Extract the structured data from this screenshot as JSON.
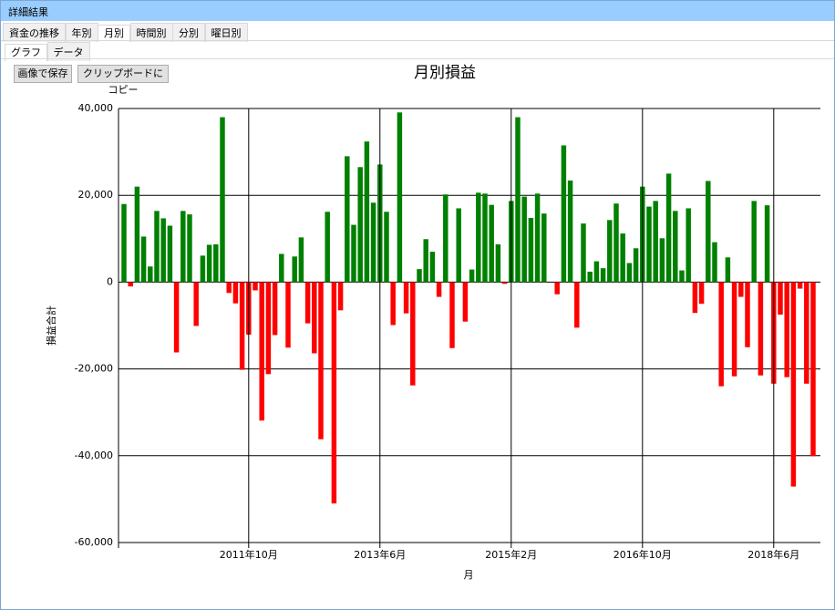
{
  "window": {
    "title": "詳細結果"
  },
  "tabs": [
    "資金の推移",
    "年別",
    "月別",
    "時間別",
    "分別",
    "曜日別"
  ],
  "subtabs": [
    "グラフ",
    "データ"
  ],
  "buttons": [
    "画像で保存",
    "クリップボードにコピー"
  ],
  "chart_data": {
    "type": "bar",
    "title": "月別損益",
    "x_label": "月",
    "y_label": "損益合計",
    "categories": [
      null,
      null,
      null,
      null,
      null,
      null,
      null,
      null,
      null,
      null,
      null,
      null,
      null,
      null,
      null,
      null,
      null,
      null,
      null,
      "2011年10月",
      null,
      null,
      null,
      null,
      null,
      null,
      null,
      null,
      null,
      null,
      null,
      null,
      null,
      null,
      null,
      null,
      null,
      null,
      null,
      "2013年6月",
      null,
      null,
      null,
      null,
      null,
      null,
      null,
      null,
      null,
      null,
      null,
      null,
      null,
      null,
      null,
      null,
      null,
      null,
      null,
      "2015年2月",
      null,
      null,
      null,
      null,
      null,
      null,
      null,
      null,
      null,
      null,
      null,
      null,
      null,
      null,
      null,
      null,
      null,
      null,
      null,
      "2016年10月",
      null,
      null,
      null,
      null,
      null,
      null,
      null,
      null,
      null,
      null,
      null,
      null,
      null,
      null,
      null,
      null,
      null,
      null,
      null,
      "2018年6月",
      null,
      null,
      null,
      null,
      null,
      null
    ],
    "values": [
      18000,
      -1000,
      22000,
      10500,
      3600,
      16400,
      14700,
      13000,
      -16200,
      16400,
      15600,
      -10100,
      6100,
      8600,
      8700,
      38000,
      -2500,
      -4900,
      -20200,
      -12100,
      -1900,
      -31900,
      -21200,
      -12200,
      6500,
      -15100,
      5900,
      10300,
      -9500,
      -16400,
      -36200,
      16200,
      -51000,
      -6500,
      29000,
      13200,
      26500,
      32400,
      18300,
      27100,
      16200,
      -9900,
      39100,
      -7200,
      -23800,
      3000,
      9900,
      7000,
      -3400,
      20200,
      -15200,
      17000,
      -9100,
      2900,
      20600,
      20400,
      17800,
      8700,
      -400,
      18700,
      38000,
      19700,
      14800,
      20400,
      15800,
      0,
      -2800,
      31500,
      23400,
      -10500,
      13500,
      2400,
      4800,
      3200,
      14300,
      18100,
      11200,
      4400,
      7800,
      22000,
      17400,
      18700,
      10100,
      25000,
      16400,
      2700,
      17000,
      -7100,
      -5000,
      23300,
      9200,
      -24000,
      5700,
      -21700,
      -3400,
      -15000,
      18700,
      -21500,
      17700,
      -23400,
      -7500,
      -21900,
      -47100,
      -1500,
      -23400,
      -40100
    ],
    "positive_color": "#008000",
    "negative_color": "#ff0000",
    "ylim": [
      -60000,
      40000
    ],
    "yticks": [
      {
        "value": -60000,
        "label": "-60,000"
      },
      {
        "value": -40000,
        "label": "-40,000"
      },
      {
        "value": -20000,
        "label": "-20,000"
      },
      0,
      {
        "value": 20000,
        "label": "20,000"
      },
      {
        "value": 40000,
        "label": "40,000"
      }
    ],
    "grid": true
  }
}
